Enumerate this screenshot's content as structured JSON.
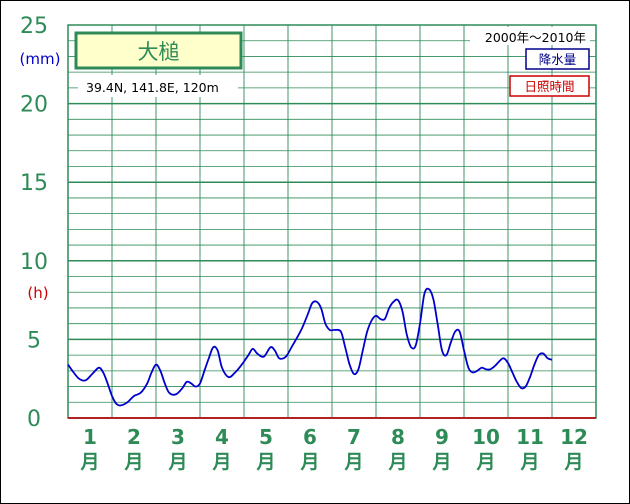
{
  "chart_data": {
    "type": "line",
    "title": "大槌",
    "location": "39.4N,  141.8E,  120m",
    "period": "2000年〜2010年",
    "legend": [
      {
        "label": "降水量",
        "color": "#00008b"
      },
      {
        "label": "日照時間",
        "color": "#cc0000"
      }
    ],
    "units": {
      "precip": "(mm)",
      "sunshine": "(h)"
    },
    "yticks": [
      "0",
      "5",
      "10",
      "15",
      "20",
      "25"
    ],
    "ylim": [
      0,
      25
    ],
    "xlim": [
      1,
      13
    ],
    "months": [
      "1",
      "2",
      "3",
      "4",
      "5",
      "6",
      "7",
      "8",
      "9",
      "10",
      "11",
      "12"
    ],
    "month_unit": "月",
    "grid": true,
    "series": [
      {
        "name": "降水量",
        "color": "#0000cd",
        "points": [
          [
            1.0,
            3.4
          ],
          [
            1.1,
            3.0
          ],
          [
            1.25,
            2.5
          ],
          [
            1.4,
            2.4
          ],
          [
            1.55,
            2.8
          ],
          [
            1.7,
            3.2
          ],
          [
            1.8,
            2.9
          ],
          [
            1.9,
            2.2
          ],
          [
            2.0,
            1.4
          ],
          [
            2.1,
            0.9
          ],
          [
            2.2,
            0.8
          ],
          [
            2.35,
            1.0
          ],
          [
            2.5,
            1.4
          ],
          [
            2.65,
            1.6
          ],
          [
            2.8,
            2.2
          ],
          [
            2.9,
            2.9
          ],
          [
            3.0,
            3.4
          ],
          [
            3.1,
            3.0
          ],
          [
            3.2,
            2.2
          ],
          [
            3.3,
            1.6
          ],
          [
            3.45,
            1.5
          ],
          [
            3.6,
            1.9
          ],
          [
            3.7,
            2.3
          ],
          [
            3.8,
            2.2
          ],
          [
            3.9,
            2.0
          ],
          [
            4.0,
            2.2
          ],
          [
            4.1,
            3.0
          ],
          [
            4.2,
            3.8
          ],
          [
            4.3,
            4.5
          ],
          [
            4.4,
            4.3
          ],
          [
            4.5,
            3.2
          ],
          [
            4.65,
            2.6
          ],
          [
            4.8,
            2.9
          ],
          [
            4.95,
            3.4
          ],
          [
            5.1,
            4.0
          ],
          [
            5.2,
            4.4
          ],
          [
            5.3,
            4.1
          ],
          [
            5.45,
            3.9
          ],
          [
            5.6,
            4.5
          ],
          [
            5.7,
            4.3
          ],
          [
            5.8,
            3.8
          ],
          [
            5.95,
            3.9
          ],
          [
            6.1,
            4.6
          ],
          [
            6.3,
            5.6
          ],
          [
            6.45,
            6.6
          ],
          [
            6.55,
            7.3
          ],
          [
            6.65,
            7.4
          ],
          [
            6.75,
            7.0
          ],
          [
            6.85,
            6.0
          ],
          [
            6.95,
            5.6
          ],
          [
            7.05,
            5.6
          ],
          [
            7.2,
            5.5
          ],
          [
            7.3,
            4.5
          ],
          [
            7.4,
            3.4
          ],
          [
            7.5,
            2.8
          ],
          [
            7.6,
            3.1
          ],
          [
            7.7,
            4.3
          ],
          [
            7.8,
            5.5
          ],
          [
            7.9,
            6.2
          ],
          [
            8.0,
            6.5
          ],
          [
            8.1,
            6.3
          ],
          [
            8.2,
            6.3
          ],
          [
            8.3,
            7.0
          ],
          [
            8.4,
            7.4
          ],
          [
            8.5,
            7.5
          ],
          [
            8.6,
            6.8
          ],
          [
            8.7,
            5.3
          ],
          [
            8.8,
            4.5
          ],
          [
            8.9,
            4.6
          ],
          [
            9.0,
            6.0
          ],
          [
            9.1,
            7.9
          ],
          [
            9.2,
            8.2
          ],
          [
            9.3,
            7.6
          ],
          [
            9.4,
            6.0
          ],
          [
            9.5,
            4.3
          ],
          [
            9.6,
            4.0
          ],
          [
            9.7,
            4.8
          ],
          [
            9.8,
            5.5
          ],
          [
            9.9,
            5.5
          ],
          [
            10.0,
            4.3
          ],
          [
            10.1,
            3.2
          ],
          [
            10.2,
            2.9
          ],
          [
            10.3,
            3.0
          ],
          [
            10.4,
            3.2
          ],
          [
            10.5,
            3.1
          ],
          [
            10.6,
            3.1
          ],
          [
            10.7,
            3.3
          ],
          [
            10.8,
            3.6
          ],
          [
            10.9,
            3.8
          ],
          [
            11.0,
            3.5
          ],
          [
            11.1,
            2.9
          ],
          [
            11.2,
            2.3
          ],
          [
            11.3,
            1.9
          ],
          [
            11.4,
            2.0
          ],
          [
            11.5,
            2.6
          ],
          [
            11.6,
            3.4
          ],
          [
            11.7,
            4.0
          ],
          [
            11.8,
            4.1
          ],
          [
            11.9,
            3.8
          ],
          [
            12.0,
            3.7
          ]
        ]
      }
    ]
  }
}
